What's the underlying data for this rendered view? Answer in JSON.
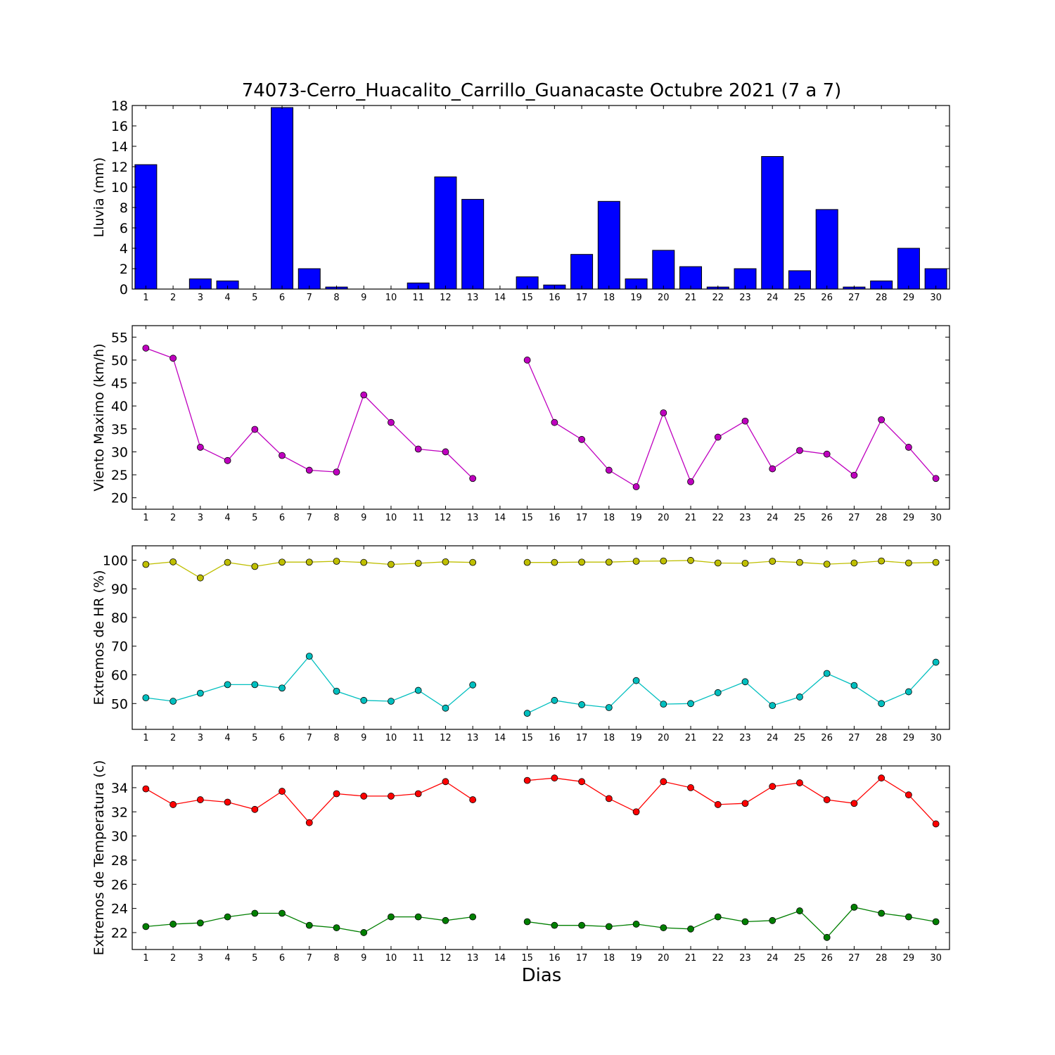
{
  "title": "74073-Cerro_Huacalito_Carrillo_Guanacaste Octubre 2021  (7 a 7)",
  "xlabel": "Dias",
  "chart_data": [
    {
      "type": "bar",
      "ylabel": "Lluvia (mm)",
      "ylim": [
        0,
        18
      ],
      "yticks": [
        0,
        2,
        4,
        6,
        8,
        10,
        12,
        14,
        16,
        18
      ],
      "categories": [
        1,
        2,
        3,
        4,
        5,
        6,
        7,
        8,
        9,
        10,
        11,
        12,
        13,
        14,
        15,
        16,
        17,
        18,
        19,
        20,
        21,
        22,
        23,
        24,
        25,
        26,
        27,
        28,
        29,
        30
      ],
      "series": [
        {
          "color": "#0000ff",
          "values": [
            12.2,
            0,
            1.0,
            0.8,
            null,
            17.8,
            2.0,
            0.2,
            0,
            0,
            0.6,
            11.0,
            8.8,
            null,
            1.2,
            0.4,
            3.4,
            8.6,
            1.0,
            3.8,
            2.2,
            0.2,
            2.0,
            13.0,
            1.8,
            7.8,
            0.2,
            0.8,
            4.0,
            2.0
          ]
        }
      ]
    },
    {
      "type": "line",
      "ylabel": "Viento Maximo (km/h)",
      "ylim": [
        17.5,
        57.5
      ],
      "yticks": [
        20,
        25,
        30,
        35,
        40,
        45,
        50,
        55
      ],
      "categories": [
        1,
        2,
        3,
        4,
        5,
        6,
        7,
        8,
        9,
        10,
        11,
        12,
        13,
        14,
        15,
        16,
        17,
        18,
        19,
        20,
        21,
        22,
        23,
        24,
        25,
        26,
        27,
        28,
        29,
        30
      ],
      "series": [
        {
          "color": "#bf00bf",
          "values": [
            52.6,
            50.4,
            31.0,
            28.1,
            34.9,
            29.2,
            26.0,
            25.6,
            42.4,
            36.4,
            30.6,
            30.0,
            24.2,
            null,
            50.0,
            36.4,
            32.7,
            26.0,
            22.4,
            38.5,
            23.5,
            33.2,
            36.7,
            26.3,
            30.3,
            29.5,
            24.9,
            37.0,
            31.0,
            24.2
          ]
        }
      ]
    },
    {
      "type": "line",
      "ylabel": "Extremos de HR (%)",
      "ylim": [
        41,
        105
      ],
      "yticks": [
        50,
        60,
        70,
        80,
        90,
        100
      ],
      "categories": [
        1,
        2,
        3,
        4,
        5,
        6,
        7,
        8,
        9,
        10,
        11,
        12,
        13,
        14,
        15,
        16,
        17,
        18,
        19,
        20,
        21,
        22,
        23,
        24,
        25,
        26,
        27,
        28,
        29,
        30
      ],
      "series": [
        {
          "color": "#bfbf00",
          "values": [
            98.5,
            99.4,
            93.8,
            99.2,
            97.8,
            99.3,
            99.3,
            99.6,
            99.2,
            98.5,
            98.9,
            99.4,
            99.2,
            null,
            99.2,
            99.2,
            99.3,
            99.3,
            99.6,
            99.7,
            99.9,
            99.0,
            98.9,
            99.6,
            99.2,
            98.6,
            99.0,
            99.7,
            99.0,
            99.2
          ]
        },
        {
          "color": "#00bfbf",
          "values": [
            52.0,
            50.8,
            53.6,
            56.6,
            56.6,
            55.4,
            66.5,
            54.3,
            51.1,
            50.8,
            54.6,
            48.4,
            56.5,
            null,
            46.6,
            51.1,
            49.6,
            48.6,
            58.0,
            49.8,
            50.0,
            53.8,
            57.6,
            49.3,
            52.3,
            60.5,
            56.3,
            50.0,
            54.1,
            64.4
          ]
        }
      ]
    },
    {
      "type": "line",
      "ylabel": "Extremos de Temperatura (c)",
      "ylim": [
        20.6,
        35.8
      ],
      "yticks": [
        22,
        24,
        26,
        28,
        30,
        32,
        34
      ],
      "categories": [
        1,
        2,
        3,
        4,
        5,
        6,
        7,
        8,
        9,
        10,
        11,
        12,
        13,
        14,
        15,
        16,
        17,
        18,
        19,
        20,
        21,
        22,
        23,
        24,
        25,
        26,
        27,
        28,
        29,
        30
      ],
      "series": [
        {
          "color": "#ff0000",
          "values": [
            33.9,
            32.6,
            33.0,
            32.8,
            32.2,
            33.7,
            31.1,
            33.5,
            33.3,
            33.3,
            33.5,
            34.5,
            33.0,
            null,
            34.6,
            34.8,
            34.5,
            33.1,
            32.0,
            34.5,
            34.0,
            32.6,
            32.7,
            34.1,
            34.4,
            33.0,
            32.7,
            34.8,
            33.4,
            31.0
          ]
        },
        {
          "color": "#007f00",
          "values": [
            22.5,
            22.7,
            22.8,
            23.3,
            23.6,
            23.6,
            22.6,
            22.4,
            22.0,
            23.3,
            23.3,
            23.0,
            23.3,
            null,
            22.9,
            22.6,
            22.6,
            22.5,
            22.7,
            22.4,
            22.3,
            23.3,
            22.9,
            23.0,
            23.8,
            21.6,
            24.1,
            23.6,
            23.3,
            22.9
          ]
        }
      ]
    }
  ]
}
